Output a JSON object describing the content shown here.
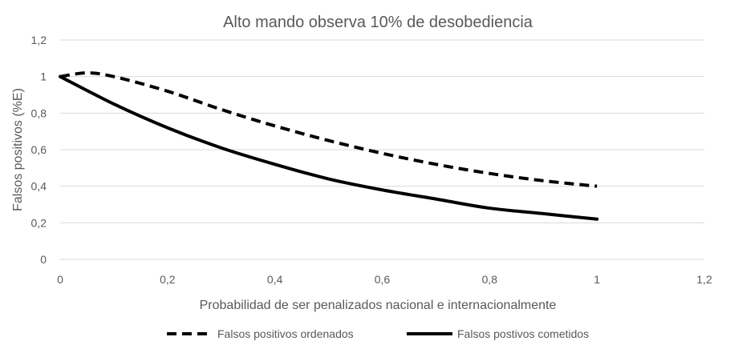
{
  "chart_data": {
    "type": "line",
    "title": "Alto mando observa 10% de desobediencia",
    "xlabel": "Probabilidad de ser penalizados nacional e internacionalmente",
    "ylabel": "Falsos positivos (%E)",
    "xlim": [
      0,
      1.2
    ],
    "ylim": [
      0,
      1.2
    ],
    "x_ticks": [
      "0",
      "0,2",
      "0,4",
      "0,6",
      "0,8",
      "1",
      "1,2"
    ],
    "y_ticks": [
      "0",
      "0,2",
      "0,4",
      "0,6",
      "0,8",
      "1",
      "1,2"
    ],
    "grid": "horizontal",
    "legend_position": "bottom",
    "series": [
      {
        "name": "Falsos positivos ordenados",
        "style": "dashed",
        "color": "#000000",
        "x": [
          0,
          0.05,
          0.1,
          0.2,
          0.3,
          0.4,
          0.5,
          0.6,
          0.7,
          0.8,
          0.9,
          1.0
        ],
        "y": [
          1.0,
          1.02,
          1.0,
          0.92,
          0.82,
          0.73,
          0.65,
          0.58,
          0.52,
          0.47,
          0.43,
          0.4
        ]
      },
      {
        "name": "Falsos postivos cometidos",
        "style": "solid",
        "color": "#000000",
        "x": [
          0,
          0.1,
          0.2,
          0.3,
          0.4,
          0.5,
          0.6,
          0.7,
          0.8,
          0.9,
          1.0
        ],
        "y": [
          1.0,
          0.85,
          0.72,
          0.61,
          0.52,
          0.44,
          0.38,
          0.33,
          0.28,
          0.25,
          0.22
        ]
      }
    ]
  }
}
